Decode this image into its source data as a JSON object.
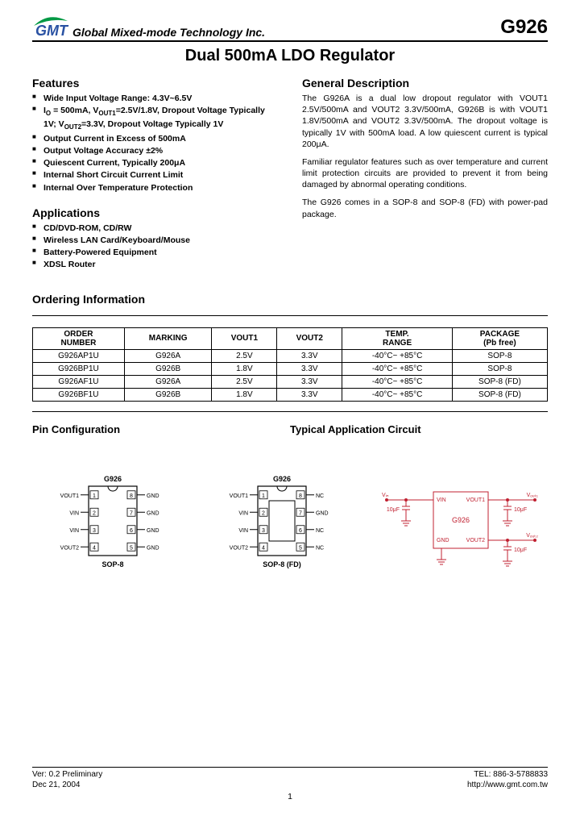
{
  "header": {
    "company": "Global Mixed-mode Technology Inc.",
    "part_number": "G926",
    "logo": {
      "swoosh_color": "#009944",
      "text_color": "#2a52a3",
      "text": "GMT"
    }
  },
  "title": "Dual 500mA LDO Regulator",
  "features": {
    "heading": "Features",
    "items": [
      "Wide Input Voltage Range: 4.3V~6.5V",
      "I<sub>O</sub> = 500mA, V<sub>OUT1</sub>=2.5V/1.8V, Dropout Voltage Typically 1V; V<sub>OUT2</sub>=3.3V, Dropout Voltage Typically 1V",
      "Output Current in Excess of 500mA",
      "Output Voltage Accuracy ±2%",
      "Quiescent Current, Typically 200μA",
      "Internal Short Circuit Current Limit",
      "Internal Over Temperature Protection"
    ]
  },
  "description": {
    "heading": "General Description",
    "paragraphs": [
      "The G926A is a dual low dropout regulator with VOUT1 2.5V/500mA and VOUT2 3.3V/500mA, G926B is with VOUT1 1.8V/500mA and VOUT2 3.3V/500mA. The dropout voltage is typically 1V with 500mA load. A low quiescent current is typical 200μA.",
      "Familiar regulator features such as over temperature and current limit protection circuits are provided to prevent it from being damaged by abnormal operating conditions.",
      "The G926 comes in a SOP-8 and SOP-8 (FD) with power-pad package."
    ]
  },
  "applications": {
    "heading": "Applications",
    "items": [
      "CD/DVD-ROM, CD/RW",
      "Wireless LAN Card/Keyboard/Mouse",
      "Battery-Powered Equipment",
      "XDSL Router"
    ]
  },
  "ordering": {
    "heading": "Ordering Information",
    "columns": [
      "ORDER NUMBER",
      "MARKING",
      "VOUT1",
      "VOUT2",
      "TEMP. RANGE",
      "PACKAGE (Pb free)"
    ],
    "rows": [
      [
        "G926AP1U",
        "G926A",
        "2.5V",
        "3.3V",
        "-40°C~ +85°C",
        "SOP-8"
      ],
      [
        "G926BP1U",
        "G926B",
        "1.8V",
        "3.3V",
        "-40°C~ +85°C",
        "SOP-8"
      ],
      [
        "G926AF1U",
        "G926A",
        "2.5V",
        "3.3V",
        "-40°C~ +85°C",
        "SOP-8 (FD)"
      ],
      [
        "G926BF1U",
        "G926B",
        "1.8V",
        "3.3V",
        "-40°C~ +85°C",
        "SOP-8 (FD)"
      ]
    ]
  },
  "pin_config": {
    "heading": "Pin Configuration",
    "packages": [
      {
        "title": "G926",
        "footer": "SOP-8",
        "left_pins": [
          [
            "VOUT1",
            "1"
          ],
          [
            "VIN",
            "2"
          ],
          [
            "VIN",
            "3"
          ],
          [
            "VOUT2",
            "4"
          ]
        ],
        "right_pins": [
          [
            "8",
            "GND"
          ],
          [
            "7",
            "GND"
          ],
          [
            "6",
            "GND"
          ],
          [
            "5",
            "GND"
          ]
        ],
        "pad": false
      },
      {
        "title": "G926",
        "footer": "SOP-8 (FD)",
        "left_pins": [
          [
            "VOUT1",
            "1"
          ],
          [
            "VIN",
            "2"
          ],
          [
            "VIN",
            "3"
          ],
          [
            "VOUT2",
            "4"
          ]
        ],
        "right_pins": [
          [
            "8",
            "NC"
          ],
          [
            "7",
            "GND"
          ],
          [
            "6",
            "NC"
          ],
          [
            "5",
            "NC"
          ]
        ],
        "pad": true
      }
    ]
  },
  "app_circuit": {
    "heading": "Typical Application Circuit",
    "chip": "G926",
    "pins": {
      "vin": "VIN",
      "vout1": "VOUT1",
      "vout2": "VOUT2",
      "gnd": "GND"
    },
    "labels": {
      "vin": "V",
      "vout1": "V",
      "vout2": "V"
    },
    "caps": {
      "cin": "10μF",
      "cout1": "10μF",
      "cout2": "10μF"
    },
    "color": "#c02030"
  },
  "footer": {
    "ver": "Ver: 0.2 Preliminary",
    "date": "Dec 21, 2004",
    "tel": "TEL: 886-3-5788833",
    "url": "http://www.gmt.com.tw",
    "page": "1"
  },
  "style": {
    "text_color": "#000000",
    "accent_color": "#c02030",
    "font_family": "Arial, sans-serif"
  }
}
